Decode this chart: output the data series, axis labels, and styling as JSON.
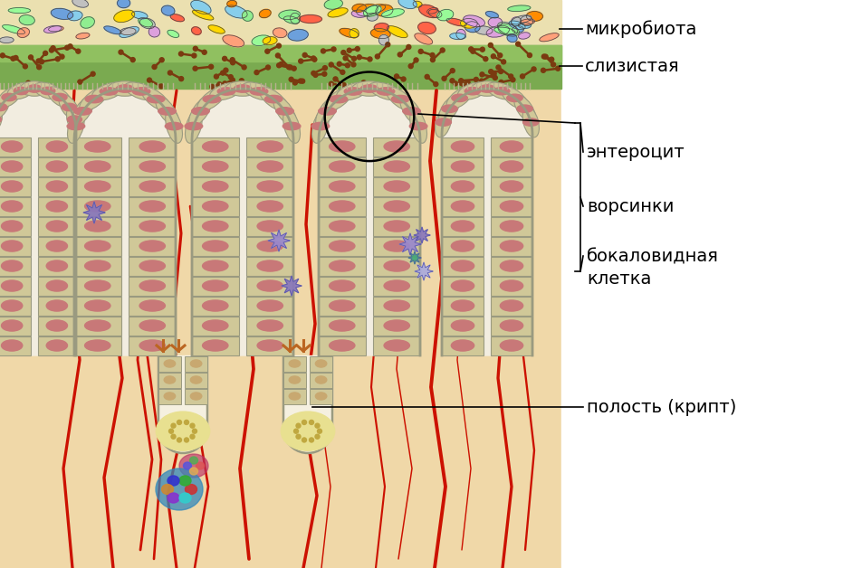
{
  "bg_color": "#f0d8a8",
  "mucus_green": "#7aaa50",
  "mucus_light": "#90c060",
  "top_band": "#ebe0b0",
  "bacteria_colors": [
    "#6ca0dc",
    "#90ee90",
    "#ffd700",
    "#ff8c00",
    "#dda0dd",
    "#87ceeb",
    "#98fb98",
    "#ffa07a",
    "#ff6347",
    "#c0c0c0"
  ],
  "villus_inner": "#f2ede0",
  "villus_outer": "#9a9a80",
  "cell_fill": "#d0c898",
  "nucleus_fill": "#c87878",
  "blood_color": "#cc1100",
  "immune_color": "#8877bb",
  "crypt_inner": "#f5f0e0",
  "paneth_color": "#e8e090",
  "label_microbiota": "микробиота",
  "label_slizistaya": "слизистая",
  "label_enterocit": "энтероцит",
  "label_vorsinki": "ворсинки",
  "label_goblet": "бокаловидная\nклетка",
  "label_crypt": "полость (крипт)",
  "font_size": 14
}
